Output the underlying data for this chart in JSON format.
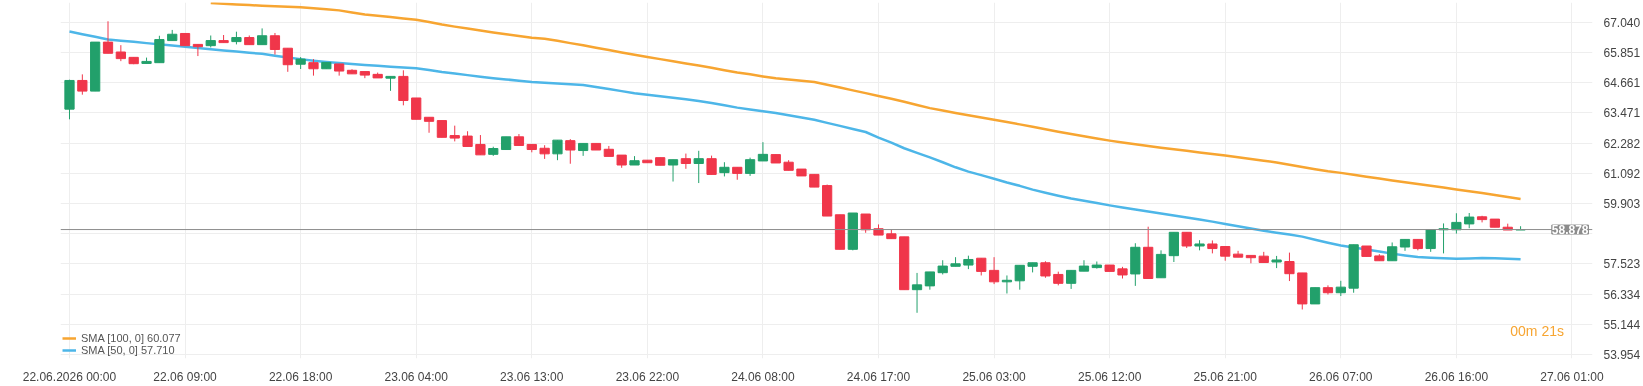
{
  "chart_data": {
    "type": "candlestick",
    "categories": [
      "22.06.2026 00:00",
      null,
      null,
      null,
      null,
      null,
      null,
      null,
      null,
      "22.06 09:00",
      null,
      null,
      null,
      null,
      null,
      null,
      null,
      null,
      "22.06 18:00",
      null,
      null,
      null,
      null,
      null,
      null,
      null,
      null,
      "23.06 04:00",
      null,
      null,
      null,
      null,
      null,
      null,
      null,
      null,
      "23.06 13:00",
      null,
      null,
      null,
      null,
      null,
      null,
      null,
      null,
      "23.06 22:00",
      null,
      null,
      null,
      null,
      null,
      null,
      null,
      null,
      "24.06 08:00",
      null,
      null,
      null,
      null,
      null,
      null,
      null,
      null,
      "24.06 17:00",
      null,
      null,
      null,
      null,
      null,
      null,
      null,
      null,
      "25.06 03:00",
      null,
      null,
      null,
      null,
      null,
      null,
      null,
      null,
      "25.06 12:00",
      null,
      null,
      null,
      null,
      null,
      null,
      null,
      null,
      "25.06 21:00",
      null,
      null,
      null,
      null,
      null,
      null,
      null,
      null,
      "26.06 07:00",
      null,
      null,
      null,
      null,
      null,
      null,
      null,
      null,
      "26.06 16:00",
      null,
      null,
      null,
      null,
      null,
      null,
      null,
      null,
      "27.06 01:00"
    ],
    "ohlc": [
      [
        63.62,
        64.78,
        63.22,
        64.75
      ],
      [
        64.75,
        64.99,
        64.19,
        64.33
      ],
      [
        64.33,
        66.26,
        64.33,
        66.26
      ],
      [
        66.26,
        67.08,
        65.82,
        65.82
      ],
      [
        65.87,
        66.14,
        65.51,
        65.61
      ],
      [
        65.66,
        65.67,
        65.39,
        65.41
      ],
      [
        65.42,
        65.65,
        65.42,
        65.5
      ],
      [
        65.45,
        66.51,
        65.45,
        66.36
      ],
      [
        66.32,
        66.74,
        66.32,
        66.57
      ],
      [
        66.6,
        66.6,
        66.12,
        66.12
      ],
      [
        66.17,
        66.17,
        65.71,
        66.08
      ],
      [
        66.12,
        66.52,
        66.05,
        66.32
      ],
      [
        66.32,
        66.54,
        66.24,
        66.24
      ],
      [
        66.28,
        66.67,
        66.17,
        66.44
      ],
      [
        66.44,
        66.52,
        66.16,
        66.16
      ],
      [
        66.16,
        66.8,
        66.16,
        66.51
      ],
      [
        66.51,
        66.62,
        65.77,
        65.97
      ],
      [
        66.02,
        66.02,
        65.09,
        65.37
      ],
      [
        65.39,
        65.67,
        65.2,
        65.59
      ],
      [
        65.45,
        65.59,
        64.94,
        65.21
      ],
      [
        65.21,
        65.46,
        65.21,
        65.46
      ],
      [
        65.4,
        65.4,
        64.94,
        65.12
      ],
      [
        65.15,
        65.19,
        65.01,
        65.01
      ],
      [
        65.1,
        65.1,
        64.84,
        64.96
      ],
      [
        64.99,
        65.06,
        64.85,
        64.85
      ],
      [
        64.84,
        64.91,
        64.34,
        64.91
      ],
      [
        64.91,
        65.15,
        63.77,
        63.96
      ],
      [
        64.06,
        64.06,
        63.22,
        63.22
      ],
      [
        63.3,
        63.3,
        62.69,
        63.14
      ],
      [
        63.17,
        63.17,
        62.51,
        62.51
      ],
      [
        62.58,
        62.97,
        62.35,
        62.48
      ],
      [
        62.56,
        62.75,
        62.15,
        62.15
      ],
      [
        62.23,
        62.6,
        61.82,
        61.82
      ],
      [
        61.84,
        62.14,
        61.78,
        62.07
      ],
      [
        62.03,
        62.53,
        62.03,
        62.53
      ],
      [
        62.53,
        62.64,
        62.19,
        62.19
      ],
      [
        62.23,
        62.23,
        61.92,
        62.03
      ],
      [
        62.08,
        62.2,
        61.66,
        61.86
      ],
      [
        61.86,
        62.4,
        61.61,
        62.4
      ],
      [
        62.38,
        62.44,
        61.47,
        62.01
      ],
      [
        61.99,
        62.27,
        61.78,
        62.27
      ],
      [
        62.27,
        62.27,
        62.01,
        62.01
      ],
      [
        62.04,
        62.17,
        61.76,
        61.76
      ],
      [
        61.81,
        61.81,
        61.31,
        61.42
      ],
      [
        61.42,
        61.77,
        61.42,
        61.59
      ],
      [
        61.61,
        61.61,
        61.51,
        61.51
      ],
      [
        61.71,
        61.71,
        61.41,
        61.41
      ],
      [
        61.42,
        61.63,
        60.77,
        61.63
      ],
      [
        61.67,
        61.87,
        61.27,
        61.48
      ],
      [
        61.48,
        61.98,
        60.71,
        61.67
      ],
      [
        61.67,
        61.79,
        61.05,
        61.05
      ],
      [
        61.12,
        61.53,
        60.97,
        61.33
      ],
      [
        61.33,
        61.33,
        60.84,
        61.09
      ],
      [
        61.09,
        61.71,
        60.99,
        61.63
      ],
      [
        61.58,
        62.32,
        61.58,
        61.84
      ],
      [
        61.83,
        61.83,
        61.5,
        61.5
      ],
      [
        61.53,
        61.61,
        61.21,
        61.21
      ],
      [
        61.26,
        61.26,
        60.99,
        60.99
      ],
      [
        61.05,
        61.05,
        60.55,
        60.55
      ],
      [
        60.61,
        60.65,
        59.41,
        59.41
      ],
      [
        59.46,
        59.46,
        58.1,
        58.1
      ],
      [
        58.1,
        59.53,
        58.06,
        59.53
      ],
      [
        59.49,
        59.49,
        58.75,
        58.87
      ],
      [
        58.91,
        59.08,
        58.66,
        58.66
      ],
      [
        58.71,
        58.87,
        58.52,
        58.52
      ],
      [
        58.59,
        58.59,
        56.51,
        56.51
      ],
      [
        56.51,
        57.17,
        55.6,
        56.7
      ],
      [
        56.66,
        57.21,
        56.51,
        57.21
      ],
      [
        57.18,
        57.67,
        57.11,
        57.44
      ],
      [
        57.43,
        57.79,
        57.43,
        57.53
      ],
      [
        57.48,
        57.85,
        57.32,
        57.7
      ],
      [
        57.75,
        57.75,
        57.07,
        57.23
      ],
      [
        57.27,
        57.79,
        56.73,
        56.82
      ],
      [
        56.82,
        57.07,
        56.36,
        56.88
      ],
      [
        56.86,
        57.47,
        56.51,
        57.47
      ],
      [
        57.43,
        57.57,
        57.19,
        57.57
      ],
      [
        57.57,
        57.63,
        56.98,
        57.05
      ],
      [
        57.11,
        57.22,
        56.68,
        56.76
      ],
      [
        56.76,
        57.27,
        56.54,
        57.27
      ],
      [
        57.24,
        57.67,
        57.24,
        57.44
      ],
      [
        57.38,
        57.62,
        57.34,
        57.48
      ],
      [
        57.48,
        57.48,
        57.23,
        57.23
      ],
      [
        57.33,
        57.41,
        56.95,
        57.09
      ],
      [
        57.13,
        58.34,
        56.66,
        58.18
      ],
      [
        58.18,
        58.99,
        56.95,
        56.95
      ],
      [
        56.98,
        58.06,
        56.98,
        57.9
      ],
      [
        57.85,
        58.77,
        57.6,
        58.77
      ],
      [
        58.77,
        58.77,
        58.15,
        58.23
      ],
      [
        58.23,
        58.46,
        58.06,
        58.31
      ],
      [
        58.31,
        58.45,
        57.94,
        58.13
      ],
      [
        58.21,
        58.21,
        57.65,
        57.83
      ],
      [
        57.91,
        58.04,
        57.79,
        57.79
      ],
      [
        57.86,
        57.86,
        57.55,
        57.77
      ],
      [
        57.83,
        58.0,
        57.58,
        57.58
      ],
      [
        57.6,
        57.84,
        57.36,
        57.68
      ],
      [
        57.62,
        57.97,
        56.85,
        57.14
      ],
      [
        57.17,
        57.17,
        55.73,
        55.95
      ],
      [
        55.95,
        56.59,
        55.95,
        56.59
      ],
      [
        56.59,
        56.68,
        56.32,
        56.39
      ],
      [
        56.39,
        56.86,
        56.26,
        56.61
      ],
      [
        56.57,
        58.28,
        56.39,
        58.28
      ],
      [
        58.23,
        58.23,
        57.82,
        57.82
      ],
      [
        57.84,
        57.91,
        57.65,
        57.65
      ],
      [
        57.65,
        58.37,
        57.65,
        58.2
      ],
      [
        58.19,
        58.49,
        58.04,
        58.49
      ],
      [
        58.49,
        58.49,
        58.06,
        58.13
      ],
      [
        58.13,
        58.88,
        58.0,
        58.88
      ],
      [
        58.87,
        59.12,
        57.94,
        58.91
      ],
      [
        58.87,
        59.52,
        58.72,
        59.16
      ],
      [
        59.1,
        59.53,
        58.93,
        59.37
      ],
      [
        59.38,
        59.42,
        59.16,
        59.27
      ],
      [
        59.29,
        59.29,
        58.97,
        58.97
      ],
      [
        58.97,
        59.11,
        58.86,
        58.86
      ],
      [
        58.87,
        59.01,
        58.87,
        58.88
      ],
      null,
      null,
      null,
      null
    ],
    "colors": [
      "#22a06b",
      "#f0364a",
      "#22a06b",
      "#f0364a",
      "#f0364a",
      "#f0364a",
      "#22a06b",
      "#22a06b",
      "#22a06b",
      "#f0364a",
      "#f0364a",
      "#22a06b",
      "#f0364a",
      "#22a06b",
      "#f0364a",
      "#22a06b",
      "#f0364a",
      "#f0364a",
      "#22a06b",
      "#f0364a",
      "#22a06b",
      "#f0364a",
      "#f0364a",
      "#f0364a",
      "#f0364a",
      "#22a06b",
      "#f0364a",
      "#f0364a",
      "#f0364a",
      "#f0364a",
      "#f0364a",
      "#f0364a",
      "#f0364a",
      "#22a06b",
      "#22a06b",
      "#f0364a",
      "#f0364a",
      "#f0364a",
      "#22a06b",
      "#f0364a",
      "#22a06b",
      "#f0364a",
      "#f0364a",
      "#f0364a",
      "#22a06b",
      "#f0364a",
      "#f0364a",
      "#22a06b",
      "#f0364a",
      "#22a06b",
      "#f0364a",
      "#22a06b",
      "#f0364a",
      "#22a06b",
      "#22a06b",
      "#f0364a",
      "#f0364a",
      "#f0364a",
      "#f0364a",
      "#f0364a",
      "#f0364a",
      "#22a06b",
      "#f0364a",
      "#f0364a",
      "#f0364a",
      "#f0364a",
      "#22a06b",
      "#22a06b",
      "#22a06b",
      "#22a06b",
      "#22a06b",
      "#f0364a",
      "#f0364a",
      "#22a06b",
      "#22a06b",
      "#22a06b",
      "#f0364a",
      "#f0364a",
      "#22a06b",
      "#22a06b",
      "#22a06b",
      "#f0364a",
      "#f0364a",
      "#22a06b",
      "#f0364a",
      "#22a06b",
      "#22a06b",
      "#f0364a",
      "#22a06b",
      "#f0364a",
      "#f0364a",
      "#f0364a",
      "#f0364a",
      "#f0364a",
      "#22a06b",
      "#f0364a",
      "#f0364a",
      "#22a06b",
      "#f0364a",
      "#22a06b",
      "#22a06b",
      "#f0364a",
      "#f0364a",
      "#22a06b",
      "#22a06b",
      "#f0364a",
      "#22a06b",
      "#22a06b",
      "#22a06b",
      "#22a06b",
      "#f0364a",
      "#f0364a",
      "#f0364a",
      "#22a06b",
      null,
      null,
      null,
      null
    ],
    "series": [
      {
        "name": "SMA [100, 0] 60.077",
        "type": "line",
        "color": "#f7a531",
        "values": [
          null,
          null,
          null,
          null,
          null,
          null,
          null,
          null,
          null,
          null,
          null,
          67.8,
          67.77,
          67.74,
          67.72,
          67.69,
          67.67,
          67.65,
          67.63,
          67.59,
          67.55,
          67.51,
          67.43,
          67.35,
          67.3,
          67.25,
          67.19,
          67.14,
          67.05,
          66.95,
          66.87,
          66.8,
          66.72,
          66.64,
          66.57,
          66.5,
          66.43,
          66.39,
          66.31,
          66.22,
          66.14,
          66.04,
          65.95,
          65.85,
          65.76,
          65.67,
          65.59,
          65.51,
          65.42,
          65.34,
          65.25,
          65.15,
          65.06,
          64.99,
          64.91,
          64.84,
          64.79,
          64.74,
          64.69,
          64.58,
          64.47,
          64.36,
          64.25,
          64.14,
          64.03,
          63.91,
          63.78,
          63.66,
          63.57,
          63.47,
          63.38,
          63.29,
          63.2,
          63.11,
          63.02,
          62.93,
          62.83,
          62.73,
          62.64,
          62.55,
          62.46,
          62.38,
          62.31,
          62.24,
          62.17,
          62.1,
          62.04,
          61.98,
          61.91,
          61.85,
          61.79,
          61.73,
          61.66,
          61.59,
          61.52,
          61.43,
          61.34,
          61.25,
          61.17,
          61.11,
          61.04,
          60.96,
          60.89,
          60.81,
          60.74,
          60.67,
          60.6,
          60.53,
          60.46,
          60.39,
          60.32,
          60.24,
          60.16,
          60.08,
          null,
          null,
          null,
          null
        ]
      },
      {
        "name": "SMA [50, 0] 57.710",
        "type": "line",
        "color": "#4db6e8",
        "values": [
          66.68,
          66.57,
          66.47,
          66.36,
          66.31,
          66.27,
          66.22,
          null,
          66.13,
          66.08,
          66.03,
          65.98,
          65.93,
          65.89,
          65.84,
          65.8,
          65.72,
          65.65,
          65.59,
          65.53,
          65.48,
          65.44,
          65.4,
          65.36,
          65.33,
          65.29,
          65.26,
          65.23,
          65.16,
          65.08,
          65.02,
          64.96,
          64.9,
          64.84,
          64.79,
          64.74,
          64.69,
          64.66,
          64.63,
          64.6,
          64.57,
          64.49,
          64.41,
          64.33,
          64.25,
          64.19,
          64.13,
          64.07,
          64.01,
          63.94,
          63.86,
          63.77,
          63.68,
          63.61,
          63.54,
          63.47,
          63.38,
          63.29,
          63.2,
          63.08,
          62.96,
          62.84,
          62.72,
          62.5,
          62.3,
          62.08,
          61.9,
          61.72,
          61.53,
          61.33,
          61.16,
          61.02,
          60.88,
          60.73,
          60.6,
          60.45,
          60.33,
          60.21,
          60.1,
          60.01,
          59.92,
          59.83,
          59.75,
          59.67,
          59.59,
          59.51,
          59.43,
          59.35,
          59.27,
          59.19,
          59.1,
          59.01,
          58.92,
          58.83,
          58.75,
          58.68,
          58.6,
          58.48,
          58.36,
          58.25,
          null,
          58.09,
          58.01,
          57.93,
          57.86,
          57.8,
          57.77,
          57.75,
          57.73,
          57.74,
          57.76,
          57.75,
          57.73,
          57.71,
          null,
          null,
          null,
          null
        ]
      }
    ],
    "ylim": [
      53.8,
      67.82
    ],
    "yticks": [
      {
        "value": 53.954,
        "label": "53.954"
      },
      {
        "value": 55.144,
        "label": "55.144"
      },
      {
        "value": 56.334,
        "label": "56.334"
      },
      {
        "value": 57.523,
        "label": "57.523"
      },
      {
        "value": 58.713,
        "label": null
      },
      {
        "value": 59.903,
        "label": "59.903"
      },
      {
        "value": 61.092,
        "label": "61.092"
      },
      {
        "value": 62.282,
        "label": "62.282"
      },
      {
        "value": 63.471,
        "label": "63.471"
      },
      {
        "value": 64.661,
        "label": "64.661"
      },
      {
        "value": 65.851,
        "label": "65.851"
      },
      {
        "value": 67.04,
        "label": "67.040"
      }
    ],
    "ref_lines": [
      {
        "axis": "y",
        "value": 58.878,
        "label": "58.878",
        "color": "#8c8c8c"
      }
    ],
    "annotations": [
      "00m 21s"
    ],
    "grid": true,
    "legend": "bottom left"
  }
}
